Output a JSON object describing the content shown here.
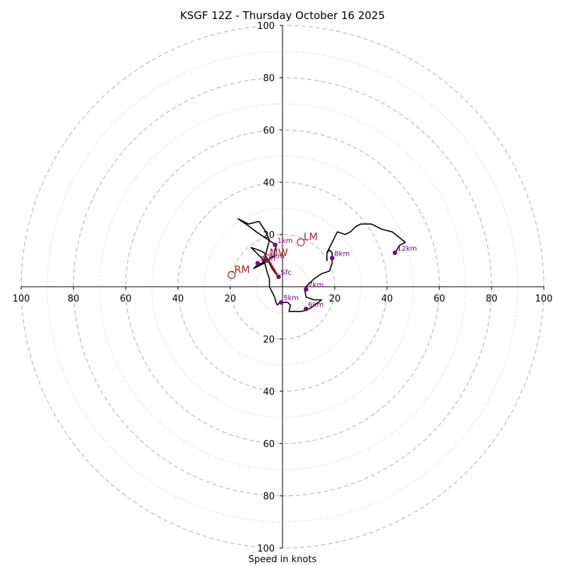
{
  "chart_data": {
    "type": "hodograph",
    "title": "KSGF 12Z - Thursday October 16 2025",
    "xlabel": "Speed in knots",
    "units": "knots",
    "range": [
      -100,
      100
    ],
    "ring_major": [
      20,
      40,
      60,
      80,
      100
    ],
    "ring_minor": [
      10,
      30,
      50,
      70,
      90
    ],
    "x_ticks": [
      {
        "value": -100,
        "label": "100"
      },
      {
        "value": -80,
        "label": "80"
      },
      {
        "value": -60,
        "label": "60"
      },
      {
        "value": -40,
        "label": "40"
      },
      {
        "value": -20,
        "label": "20"
      },
      {
        "value": 20,
        "label": "20"
      },
      {
        "value": 40,
        "label": "40"
      },
      {
        "value": 60,
        "label": "60"
      },
      {
        "value": 80,
        "label": "80"
      },
      {
        "value": 100,
        "label": "100"
      }
    ],
    "y_ticks": [
      {
        "value": 100,
        "label": "100"
      },
      {
        "value": 80,
        "label": "80"
      },
      {
        "value": 60,
        "label": "60"
      },
      {
        "value": 40,
        "label": "40"
      },
      {
        "value": 20,
        "label": "20"
      },
      {
        "value": -20,
        "label": "20"
      },
      {
        "value": -40,
        "label": "40"
      },
      {
        "value": -60,
        "label": "60"
      },
      {
        "value": -80,
        "label": "80"
      },
      {
        "value": -100,
        "label": "100"
      }
    ],
    "trace": [
      [
        -1.5,
        3.8
      ],
      [
        -3,
        5.5
      ],
      [
        -4,
        7
      ],
      [
        -5,
        9
      ],
      [
        -6,
        11
      ],
      [
        -7,
        13
      ],
      [
        -9,
        14
      ],
      [
        -12,
        15
      ],
      [
        -10,
        13
      ],
      [
        -8,
        11
      ],
      [
        -7,
        9
      ],
      [
        -9,
        8
      ],
      [
        -11,
        7
      ],
      [
        -10,
        8
      ],
      [
        -6,
        10
      ],
      [
        -3,
        12
      ],
      [
        -3,
        14
      ],
      [
        -2.5,
        15
      ],
      [
        -2.8,
        16
      ],
      [
        -4,
        17
      ],
      [
        -7,
        19
      ],
      [
        -10,
        21
      ],
      [
        -14,
        24
      ],
      [
        -17,
        26
      ],
      [
        -13,
        24
      ],
      [
        -9,
        25
      ],
      [
        -7,
        22
      ],
      [
        -5,
        18
      ],
      [
        -6,
        14
      ],
      [
        -7,
        10
      ],
      [
        -6,
        6
      ],
      [
        -5,
        3
      ],
      [
        -5,
        0
      ],
      [
        -4,
        -2
      ],
      [
        -3,
        -4
      ],
      [
        -2.5,
        -6
      ],
      [
        -2,
        -7
      ],
      [
        -1,
        -6
      ],
      [
        2,
        -6
      ],
      [
        3,
        -7
      ],
      [
        2.5,
        -9.5
      ],
      [
        5,
        -9.5
      ],
      [
        7,
        -9.5
      ],
      [
        9,
        -9
      ],
      [
        11,
        -8
      ],
      [
        15,
        -5
      ],
      [
        12,
        -5
      ],
      [
        9,
        -4
      ],
      [
        8.5,
        -1
      ],
      [
        9,
        0
      ],
      [
        12,
        3
      ],
      [
        15,
        5
      ],
      [
        18,
        6
      ],
      [
        19,
        9
      ],
      [
        19,
        11
      ],
      [
        19,
        13
      ],
      [
        18,
        14
      ],
      [
        17,
        13
      ],
      [
        17,
        11
      ],
      [
        17,
        10
      ],
      [
        17,
        13
      ],
      [
        18,
        15
      ],
      [
        19,
        17
      ],
      [
        20,
        19
      ],
      [
        21,
        21
      ],
      [
        24,
        20
      ],
      [
        26,
        21
      ],
      [
        28,
        23
      ],
      [
        30,
        24
      ],
      [
        34,
        24
      ],
      [
        38,
        22
      ],
      [
        42,
        21
      ],
      [
        47,
        17
      ],
      [
        45,
        16
      ],
      [
        43,
        13
      ]
    ],
    "height_markers": [
      {
        "label": "Sfc",
        "u": -1.5,
        "v": 3.8
      },
      {
        "label": "1km",
        "u": -2.8,
        "v": 16
      },
      {
        "label": "2km",
        "u": -6,
        "v": 10
      },
      {
        "label": "3km",
        "u": -9.5,
        "v": 9
      },
      {
        "label": "5km",
        "u": -0.5,
        "v": -6
      },
      {
        "label": "6km",
        "u": 9,
        "v": -8.5
      },
      {
        "label": "7km",
        "u": 9,
        "v": -1
      },
      {
        "label": "8km",
        "u": 19,
        "v": 11
      },
      {
        "label": "12km",
        "u": 43,
        "v": 13
      }
    ],
    "storm_motion": [
      {
        "label": "LM",
        "u": 7,
        "v": 17
      },
      {
        "label": "RM",
        "u": -19.5,
        "v": 4.5
      },
      {
        "label": "MW",
        "u": -6,
        "v": 11
      }
    ],
    "shear_vector": {
      "from": [
        -1.5,
        3.8
      ],
      "to": [
        -5.5,
        10.5
      ]
    }
  }
}
